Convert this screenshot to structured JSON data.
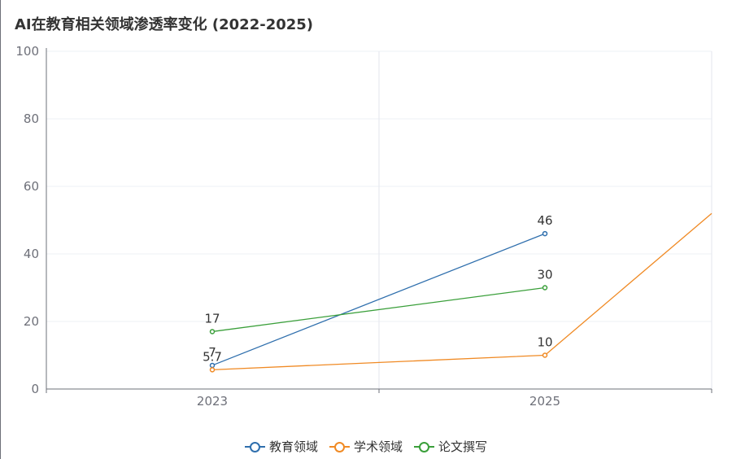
{
  "chart_data": {
    "type": "line",
    "title": "AI在教育相关领域渗透率变化 (2022-2025)",
    "categories": [
      "2023",
      "2025"
    ],
    "ylim": [
      0,
      100
    ],
    "yticks": [
      0,
      20,
      40,
      60,
      80,
      100
    ],
    "grid": true,
    "legend_position": "bottom-center",
    "series": [
      {
        "name": "教育领域",
        "color": "#2f6fad",
        "points": [
          {
            "x": "2023",
            "y": 7,
            "label": "7"
          },
          {
            "x": "2025",
            "y": 46,
            "label": "46"
          }
        ]
      },
      {
        "name": "学术领域",
        "color": "#f08a24",
        "points": [
          {
            "x": "2023",
            "y": 5.7,
            "label": "5.7"
          },
          {
            "x": "2025",
            "y": 10,
            "label": "10"
          },
          {
            "x": "2026",
            "y": 52,
            "label": ""
          }
        ]
      },
      {
        "name": "论文撰写",
        "color": "#3a9f3a",
        "points": [
          {
            "x": "2023",
            "y": 17,
            "label": "17"
          },
          {
            "x": "2025",
            "y": 30,
            "label": "30"
          }
        ]
      }
    ]
  }
}
